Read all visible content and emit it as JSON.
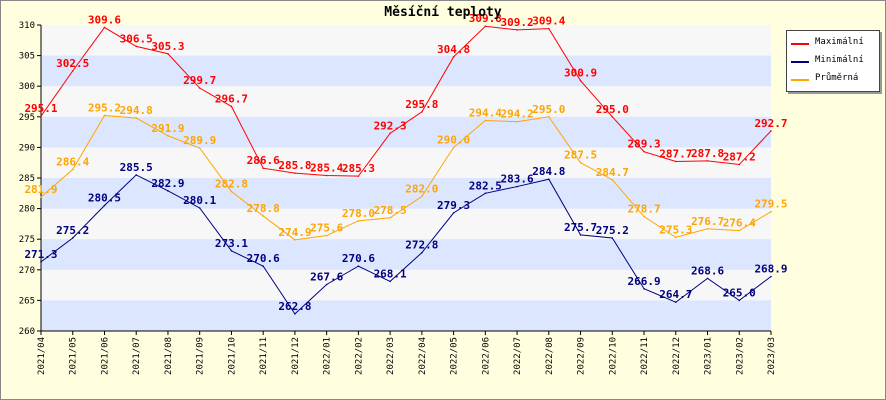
{
  "chart_data": {
    "type": "line",
    "title": "Měsíční teploty",
    "xlabel": "",
    "ylabel": "",
    "ylim": [
      260,
      310
    ],
    "yticks": [
      260,
      265,
      270,
      275,
      280,
      285,
      290,
      295,
      300,
      305,
      310
    ],
    "grid": "horizontal bands",
    "legend_position": "top-right",
    "categories": [
      "2021/04",
      "2021/05",
      "2021/06",
      "2021/07",
      "2021/08",
      "2021/09",
      "2021/10",
      "2021/11",
      "2021/12",
      "2022/01",
      "2022/02",
      "2022/03",
      "2022/04",
      "2022/05",
      "2022/06",
      "2022/07",
      "2022/08",
      "2022/09",
      "2022/10",
      "2022/11",
      "2022/12",
      "2023/01",
      "2023/02",
      "2023/03"
    ],
    "series": [
      {
        "name": "Maximální",
        "color": "#ff0000",
        "values": [
          295.1,
          302.5,
          309.6,
          306.5,
          305.3,
          299.7,
          296.7,
          286.6,
          285.8,
          285.4,
          285.3,
          292.3,
          295.8,
          304.8,
          309.8,
          309.2,
          309.4,
          300.9,
          295.0,
          289.3,
          287.7,
          287.8,
          287.2,
          292.7
        ]
      },
      {
        "name": "Minimální",
        "color": "#000080",
        "values": [
          271.3,
          275.2,
          280.5,
          285.5,
          282.9,
          280.1,
          273.1,
          270.6,
          262.8,
          267.6,
          270.6,
          268.1,
          272.8,
          279.3,
          282.5,
          283.6,
          284.8,
          275.7,
          275.2,
          266.9,
          264.7,
          268.6,
          265.0,
          268.9
        ]
      },
      {
        "name": "Průměrná",
        "color": "#ffa500",
        "values": [
          281.9,
          286.4,
          295.2,
          294.8,
          291.9,
          289.9,
          282.8,
          278.8,
          274.9,
          275.6,
          278.0,
          278.5,
          282.0,
          290.0,
          294.4,
          294.2,
          295.0,
          287.5,
          284.7,
          278.7,
          275.3,
          276.7,
          276.4,
          279.5
        ]
      }
    ]
  }
}
